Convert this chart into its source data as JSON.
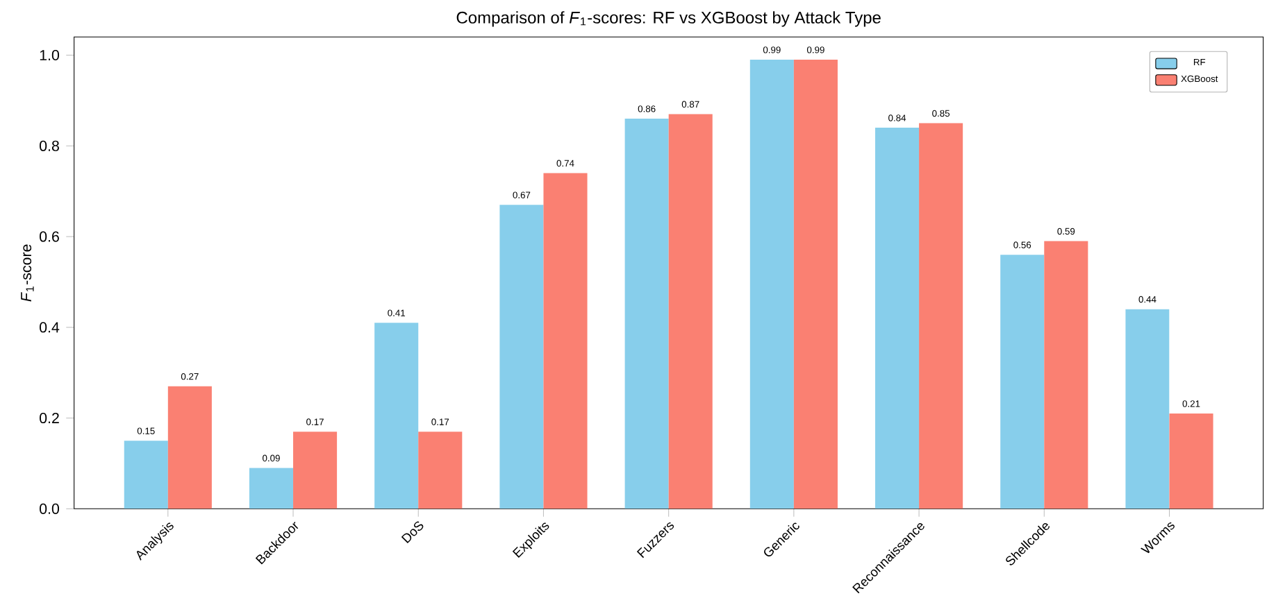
{
  "chart_data": {
    "type": "bar",
    "title": "Comparison of *F*$_{1}$-scores: RF vs XGBoost by Attack Type",
    "ylabel": "*F*$_{1}$-score",
    "categories": [
      "Analysis",
      "Backdoor",
      "DoS",
      "Exploits",
      "Fuzzers",
      "Generic",
      "Reconnaissance",
      "Shellcode",
      "Worms"
    ],
    "series": [
      {
        "name": "RF",
        "color": "#87ceeb",
        "values": [
          0.15,
          0.09,
          0.41,
          0.67,
          0.86,
          0.99,
          0.84,
          0.56,
          0.44
        ]
      },
      {
        "name": "XGBoost",
        "color": "#fa8072",
        "values": [
          0.27,
          0.17,
          0.17,
          0.74,
          0.87,
          0.99,
          0.85,
          0.59,
          0.21
        ]
      }
    ],
    "ylim": [
      0,
      1.04
    ],
    "yticks": [
      {
        "value": 0,
        "label": "0.0"
      },
      {
        "value": 0.2,
        "label": "0.2"
      },
      {
        "value": 0.4,
        "label": "0.4"
      },
      {
        "value": 0.6,
        "label": "0.6"
      },
      {
        "value": 0.8,
        "label": "0.8"
      },
      {
        "value": 1.0,
        "label": "1.0"
      }
    ],
    "data_labels": true,
    "legend": "top right",
    "grid": false
  }
}
